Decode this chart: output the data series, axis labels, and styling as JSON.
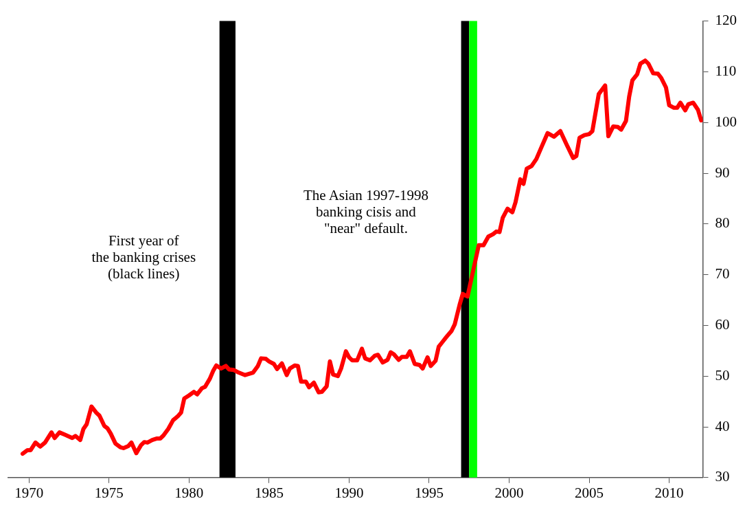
{
  "chart_data": {
    "type": "line",
    "x": [
      1969.6,
      1969.9,
      1970.1,
      1970.4,
      1970.7,
      1971.0,
      1971.4,
      1971.6,
      1971.9,
      1972.2,
      1972.7,
      1972.9,
      1973.2,
      1973.4,
      1973.6,
      1973.9,
      1974.2,
      1974.4,
      1974.7,
      1974.9,
      1975.1,
      1975.4,
      1975.7,
      1975.9,
      1976.2,
      1976.4,
      1976.7,
      1977.0,
      1977.2,
      1977.4,
      1977.7,
      1978.0,
      1978.2,
      1978.4,
      1978.7,
      1979.0,
      1979.3,
      1979.5,
      1979.7,
      1980.0,
      1980.3,
      1980.5,
      1980.8,
      1981.0,
      1981.3,
      1981.5,
      1981.7,
      1982.0,
      1982.3,
      1982.5,
      1982.8,
      1983.1,
      1983.5,
      1984.0,
      1984.3,
      1984.5,
      1984.8,
      1985.0,
      1985.3,
      1985.5,
      1985.8,
      1986.1,
      1986.3,
      1986.6,
      1986.8,
      1987.0,
      1987.3,
      1987.5,
      1987.8,
      1988.1,
      1988.3,
      1988.6,
      1988.8,
      1989.0,
      1989.3,
      1989.5,
      1989.8,
      1990.0,
      1990.2,
      1990.5,
      1990.8,
      1991.0,
      1991.3,
      1991.6,
      1991.8,
      1992.1,
      1992.4,
      1992.6,
      1992.8,
      1993.1,
      1993.3,
      1993.6,
      1993.8,
      1994.1,
      1994.4,
      1994.6,
      1994.9,
      1995.1,
      1995.4,
      1995.6,
      1995.8,
      1996.1,
      1996.4,
      1996.6,
      1996.9,
      1997.1,
      1997.4,
      1997.8,
      1998.1,
      1998.4,
      1998.7,
      1999.0,
      1999.2,
      1999.4,
      1999.6,
      1999.9,
      2000.2,
      2000.4,
      2000.7,
      2000.9,
      2001.1,
      2001.4,
      2001.7,
      2002.0,
      2002.4,
      2002.8,
      2003.2,
      2003.6,
      2004.0,
      2004.2,
      2004.4,
      2004.7,
      2005.0,
      2005.2,
      2005.6,
      2006.0,
      2006.2,
      2006.5,
      2006.8,
      2007.0,
      2007.3,
      2007.5,
      2007.7,
      2008.0,
      2008.2,
      2008.5,
      2008.7,
      2009.0,
      2009.3,
      2009.5,
      2009.8,
      2010.0,
      2010.3,
      2010.5,
      2010.7,
      2011.0,
      2011.2,
      2011.5,
      2011.8,
      2012.0
    ],
    "series": [
      {
        "color": "#ff0000",
        "values": [
          34.7,
          35.4,
          35.4,
          36.9,
          36.1,
          36.9,
          38.9,
          37.8,
          38.9,
          38.5,
          37.8,
          38.2,
          37.4,
          39.6,
          40.5,
          44.0,
          42.8,
          42.2,
          40.2,
          39.7,
          38.7,
          36.7,
          36.0,
          35.8,
          36.2,
          36.9,
          34.8,
          36.4,
          37.0,
          36.9,
          37.4,
          37.7,
          37.7,
          38.3,
          39.6,
          41.3,
          42.1,
          42.8,
          45.6,
          46.2,
          46.9,
          46.4,
          47.6,
          47.9,
          49.5,
          51.0,
          52.1,
          51.5,
          52.0,
          51.3,
          51.2,
          50.7,
          50.2,
          50.7,
          52.0,
          53.5,
          53.4,
          52.9,
          52.4,
          51.4,
          52.5,
          50.2,
          51.5,
          52.1,
          52.0,
          48.9,
          48.9,
          47.8,
          48.7,
          46.8,
          46.9,
          48.0,
          52.9,
          50.3,
          50.0,
          51.5,
          54.9,
          53.7,
          53.1,
          53.1,
          55.4,
          53.5,
          53.1,
          54.0,
          54.2,
          52.7,
          53.2,
          54.7,
          54.3,
          53.2,
          53.8,
          53.8,
          54.9,
          52.4,
          52.2,
          51.5,
          53.7,
          52.0,
          53.0,
          55.8,
          56.6,
          57.8,
          58.9,
          60.2,
          64.0,
          66.2,
          65.7,
          71.5,
          75.8,
          75.8,
          77.5,
          78.0,
          78.5,
          78.4,
          81.2,
          83.0,
          82.3,
          84.3,
          88.8,
          87.9,
          90.9,
          91.4,
          92.8,
          95.0,
          97.9,
          97.2,
          98.3,
          95.6,
          93.0,
          93.4,
          97.0,
          97.5,
          97.7,
          98.3,
          105.6,
          107.3,
          97.3,
          99.2,
          99.1,
          98.6,
          100.3,
          105.1,
          108.3,
          109.5,
          111.6,
          112.2,
          111.6,
          109.7,
          109.6,
          108.8,
          106.9,
          103.4,
          102.9,
          102.9,
          103.9,
          102.4,
          103.6,
          103.9,
          102.5,
          100.4
        ]
      }
    ],
    "xlim": [
      1968.7,
      2012.1
    ],
    "xticks": [
      1970,
      1975,
      1980,
      1985,
      1990,
      1995,
      2000,
      2005,
      2010
    ],
    "ylim": [
      30,
      120
    ],
    "yticks": [
      30,
      40,
      50,
      60,
      70,
      80,
      90,
      100,
      110,
      120
    ],
    "bands": [
      {
        "axis": "x",
        "from": 1981.9,
        "to": 1982.9,
        "color": "#000000"
      },
      {
        "axis": "x",
        "from": 1997.0,
        "to": 1997.5,
        "color": "#000000"
      },
      {
        "axis": "x",
        "from": 1997.5,
        "to": 1998.0,
        "color": "#00ff00"
      }
    ],
    "annotations": [
      "First year of\nthe banking crises\n(black lines)",
      "The Asian 1997-1998\nbanking cisis and\n\"near\" default."
    ],
    "grid": false,
    "legend": false,
    "marker": "none",
    "line_style": "solid"
  }
}
